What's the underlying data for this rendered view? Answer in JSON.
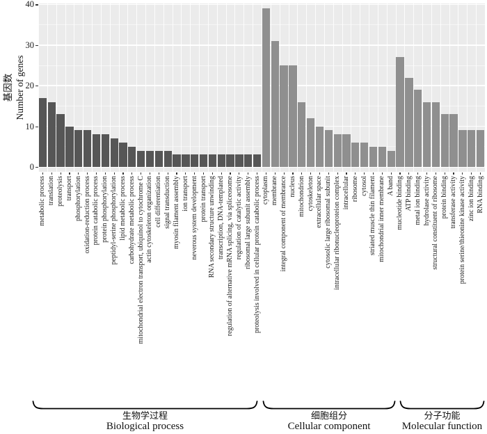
{
  "chart_data": {
    "type": "bar",
    "title": "",
    "ylabel_zh": "基因数",
    "ylabel_en": "Number of genes",
    "ylim": [
      0,
      40
    ],
    "yticks": [
      0,
      10,
      20,
      30,
      40
    ],
    "grid": "white major and minor horizontal lines on gray panel, white vertical lines per category",
    "panel_bg": "#ebebeb",
    "grid_color": "#ffffff",
    "groups": [
      {
        "label_zh": "生物学过程",
        "label_en": "Biological process",
        "bar_color": "#565656",
        "categories": [
          "metabolic process",
          "translation",
          "proteolysis",
          "transport",
          "phosphorylation",
          "oxidation-reduction process",
          "protein catabolic process",
          "protein phosphorylation",
          "peptidyl-serine phosphorylation",
          "lipid metabolic process",
          "carbohydrate metabolic process",
          "mitochondrial electron transport, ubiquinol to cytochrome C",
          "actin cytoskeleton organization",
          "cell differentiation",
          "signal transduction",
          "myosin filament assembly",
          "ion transport",
          "neverous system development",
          "protein transport",
          "RNA secondary structure unwinding",
          "transcription, DNA-templated",
          "regulation of alternative mRNA splicing, via spliceosome",
          "regulation of catalytic activity",
          "ribosomal large subunit assembly",
          "proteolysis involved in cellular protein catabolic process"
        ],
        "values": [
          17,
          16,
          13,
          10,
          9,
          9,
          8,
          8,
          7,
          6,
          5,
          4,
          4,
          4,
          4,
          3,
          3,
          3,
          3,
          3,
          3,
          3,
          3,
          3,
          3
        ]
      },
      {
        "label_zh": "细胞组分",
        "label_en": "Cellular component",
        "bar_color": "#8f8f8f",
        "categories": [
          "cytoplasm",
          "membrane",
          "integral component of membrance",
          "nucleus",
          "mitochondrion",
          "cytoskeleton",
          "extracellular space",
          "cytosolic large ribosomal subunit",
          "intracellular ribonucleoproteion complex",
          "intracellular",
          "ribosome",
          "cytosol",
          "striated muscle thin filament",
          "mitochondrial inner membrane",
          "A band"
        ],
        "values": [
          39,
          31,
          25,
          25,
          16,
          12,
          10,
          9,
          8,
          8,
          6,
          6,
          5,
          5,
          4
        ]
      },
      {
        "label_zh": "分子功能",
        "label_en": "Molecular function",
        "bar_color": "#8f8f8f",
        "categories": [
          "mucleotide binding",
          "ATP binding",
          "metal ion binding",
          "hydrolase activity",
          "structural constituent of ribosome",
          "protein binding",
          "transferase activity",
          "protein serine/thieonine kinase activity",
          "zinc ion binding",
          "RNA binding"
        ],
        "values": [
          27,
          22,
          19,
          16,
          16,
          13,
          13,
          9,
          9,
          9
        ]
      }
    ]
  }
}
